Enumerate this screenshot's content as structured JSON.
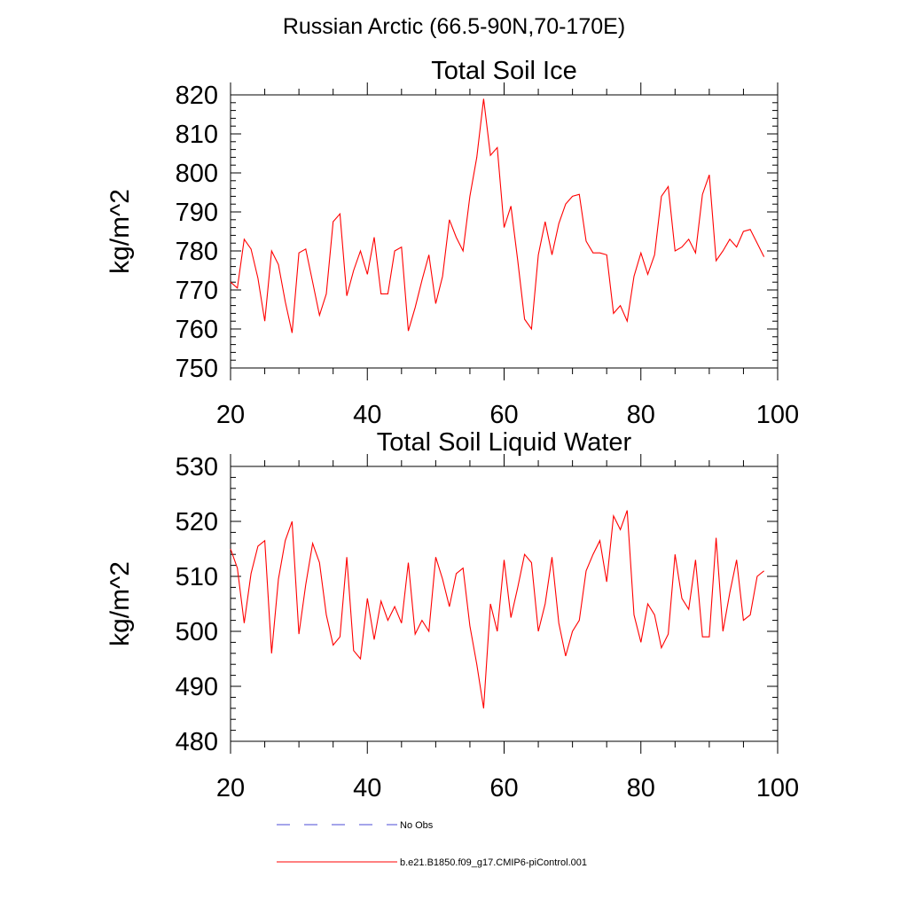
{
  "figure": {
    "suptitle": "Russian Arctic (66.5-90N,70-170E)",
    "legend": [
      {
        "label": "No Obs",
        "color": "#4b4bd6",
        "style": "dashed"
      },
      {
        "label": "b.e21.B1850.f09_g17.CMIP6-piControl.001",
        "color": "#ff0000",
        "style": "solid"
      }
    ]
  },
  "chart_data": [
    {
      "type": "line",
      "title": "Total Soil Ice",
      "xlabel": "",
      "ylabel": "kg/m^2",
      "xlim": [
        20,
        100
      ],
      "ylim": [
        750,
        820
      ],
      "xticks": [
        20,
        40,
        60,
        80,
        100
      ],
      "yticks": [
        750,
        760,
        770,
        780,
        790,
        800,
        810,
        820
      ],
      "grid": false,
      "series": [
        {
          "name": "b.e21.B1850.f09_g17.CMIP6-piControl.001",
          "color": "#ff0000",
          "x": [
            20,
            21,
            22,
            23,
            24,
            25,
            26,
            27,
            28,
            29,
            30,
            31,
            32,
            33,
            34,
            35,
            36,
            37,
            38,
            39,
            40,
            41,
            42,
            43,
            44,
            45,
            46,
            47,
            48,
            49,
            50,
            51,
            52,
            53,
            54,
            55,
            56,
            57,
            58,
            59,
            60,
            61,
            62,
            63,
            64,
            65,
            66,
            67,
            68,
            69,
            70,
            71,
            72,
            73,
            74,
            75,
            76,
            77,
            78,
            79,
            80,
            81,
            82,
            83,
            84,
            85,
            86,
            87,
            88,
            89,
            90,
            91,
            92,
            93,
            94,
            95,
            96,
            97,
            98
          ],
          "y": [
            772,
            770.5,
            783,
            780.5,
            773,
            762,
            780,
            776.5,
            767,
            759,
            779.5,
            780.5,
            772,
            763.5,
            769,
            787.5,
            789.5,
            768.5,
            775,
            780,
            774,
            783.5,
            769,
            769,
            780,
            781,
            759.5,
            765.5,
            772.5,
            779,
            766.5,
            773.5,
            788,
            783.5,
            780,
            794,
            804,
            819,
            804.5,
            806.5,
            786,
            791.5,
            777.5,
            762.5,
            760,
            779,
            787.5,
            779,
            787,
            792,
            794,
            794.5,
            782.5,
            779.5,
            779.5,
            779,
            764,
            766,
            762,
            773.5,
            779.5,
            774,
            779,
            794,
            796.5,
            780,
            781,
            783,
            779.5,
            794.5,
            799.5,
            777.5,
            780,
            783,
            781,
            785,
            785.5,
            782,
            778.5
          ]
        }
      ]
    },
    {
      "type": "line",
      "title": "Total Soil Liquid Water",
      "xlabel": "",
      "ylabel": "kg/m^2",
      "xlim": [
        20,
        100
      ],
      "ylim": [
        480,
        530
      ],
      "xticks": [
        20,
        40,
        60,
        80,
        100
      ],
      "yticks": [
        480,
        490,
        500,
        510,
        520,
        530
      ],
      "grid": false,
      "series": [
        {
          "name": "b.e21.B1850.f09_g17.CMIP6-piControl.001",
          "color": "#ff0000",
          "x": [
            20,
            21,
            22,
            23,
            24,
            25,
            26,
            27,
            28,
            29,
            30,
            31,
            32,
            33,
            34,
            35,
            36,
            37,
            38,
            39,
            40,
            41,
            42,
            43,
            44,
            45,
            46,
            47,
            48,
            49,
            50,
            51,
            52,
            53,
            54,
            55,
            56,
            57,
            58,
            59,
            60,
            61,
            62,
            63,
            64,
            65,
            66,
            67,
            68,
            69,
            70,
            71,
            72,
            73,
            74,
            75,
            76,
            77,
            78,
            79,
            80,
            81,
            82,
            83,
            84,
            85,
            86,
            87,
            88,
            89,
            90,
            91,
            92,
            93,
            94,
            95,
            96,
            97,
            98
          ],
          "y": [
            515,
            511.5,
            501.5,
            510.5,
            515.5,
            516.5,
            496,
            509.5,
            516.5,
            520,
            499.5,
            508.5,
            516,
            512.5,
            503,
            497.5,
            499,
            513.5,
            496.5,
            495,
            506,
            498.5,
            505.5,
            502,
            504.5,
            501.5,
            512.5,
            499.5,
            502,
            500,
            513.5,
            509.5,
            504.5,
            510.5,
            511.5,
            501,
            494,
            486,
            505,
            500,
            513,
            502.5,
            508,
            514,
            512.5,
            500,
            505,
            513.5,
            501.5,
            495.5,
            500,
            502,
            511,
            514,
            516.5,
            509,
            521,
            518.5,
            522,
            503,
            498,
            505,
            503,
            497,
            499.5,
            514,
            506,
            504,
            513,
            499,
            499,
            517,
            500,
            507,
            513,
            502,
            503,
            510,
            511
          ]
        }
      ]
    }
  ]
}
